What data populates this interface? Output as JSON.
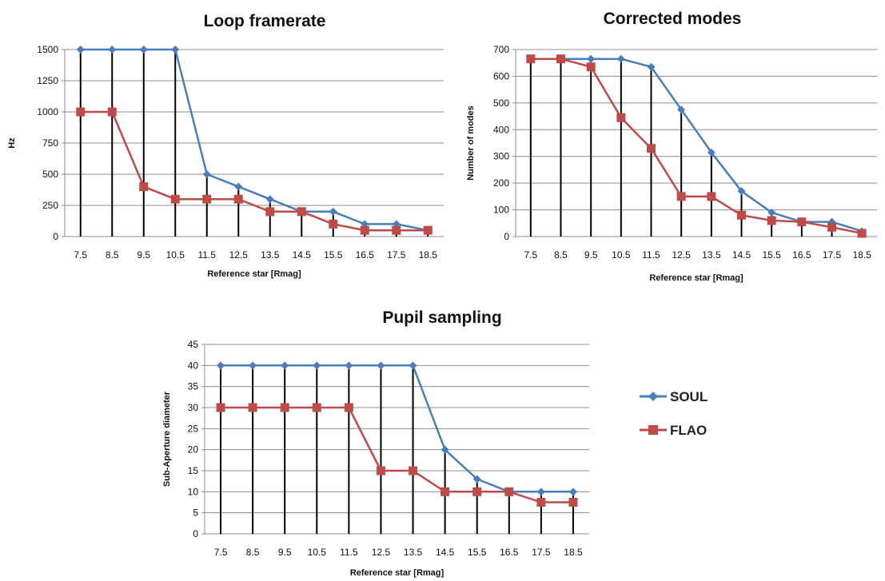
{
  "colors": {
    "soul": "#4A7EBB",
    "flao": "#BE4B48",
    "grid": "#8C8C8C",
    "stem": "#000000"
  },
  "legend": {
    "placement": "right",
    "items": [
      {
        "label": "SOUL",
        "color": "#4A7EBB",
        "marker": "diamond"
      },
      {
        "label": "FLAO",
        "color": "#BE4B48",
        "marker": "square"
      }
    ]
  },
  "chart_data": [
    {
      "type": "line",
      "title": "Loop framerate",
      "xlabel": "Reference star [Rmag]",
      "ylabel": "Hz",
      "categories": [
        "7.5",
        "8.5",
        "9.5",
        "10.5",
        "11.5",
        "12.5",
        "13.5",
        "14.5",
        "15.5",
        "16.5",
        "17.5",
        "18.5"
      ],
      "ylim": [
        0,
        1500
      ],
      "yticks": [
        0,
        250,
        500,
        750,
        1000,
        1250,
        1500
      ],
      "grid": true,
      "series": [
        {
          "name": "SOUL",
          "values": [
            1500,
            1500,
            1500,
            1500,
            500,
            400,
            300,
            200,
            200,
            100,
            100,
            50
          ]
        },
        {
          "name": "FLAO",
          "values": [
            1000,
            1000,
            400,
            300,
            300,
            300,
            200,
            200,
            100,
            50,
            50,
            50
          ]
        }
      ]
    },
    {
      "type": "line",
      "title": "Corrected modes",
      "xlabel": "Reference star [Rmag]",
      "ylabel": "Number of modes",
      "categories": [
        "7.5",
        "8.5",
        "9.5",
        "10.5",
        "11.5",
        "12.5",
        "13.5",
        "14.5",
        "15.5",
        "16.5",
        "17.5",
        "18.5"
      ],
      "ylim": [
        0,
        700
      ],
      "yticks": [
        0,
        100,
        200,
        300,
        400,
        500,
        600,
        700
      ],
      "grid": true,
      "series": [
        {
          "name": "SOUL",
          "values": [
            665,
            665,
            665,
            665,
            635,
            475,
            315,
            170,
            90,
            55,
            55,
            20
          ]
        },
        {
          "name": "FLAO",
          "values": [
            665,
            665,
            635,
            445,
            330,
            150,
            150,
            80,
            60,
            55,
            35,
            12
          ]
        }
      ]
    },
    {
      "type": "line",
      "title": "Pupil sampling",
      "xlabel": "Reference star [Rmag]",
      "ylabel": "Sub-Aperture diameter",
      "categories": [
        "7.5",
        "8.5",
        "9.5",
        "10.5",
        "11.5",
        "12.5",
        "13.5",
        "14.5",
        "15.5",
        "16.5",
        "17.5",
        "18.5"
      ],
      "ylim": [
        0,
        45
      ],
      "yticks": [
        0,
        5,
        10,
        15,
        20,
        25,
        30,
        35,
        40,
        45
      ],
      "grid": true,
      "series": [
        {
          "name": "SOUL",
          "values": [
            40,
            40,
            40,
            40,
            40,
            40,
            40,
            20,
            13,
            10,
            10,
            10
          ]
        },
        {
          "name": "FLAO",
          "values": [
            30,
            30,
            30,
            30,
            30,
            15,
            15,
            10,
            10,
            10,
            7.5,
            7.5
          ]
        }
      ]
    }
  ]
}
